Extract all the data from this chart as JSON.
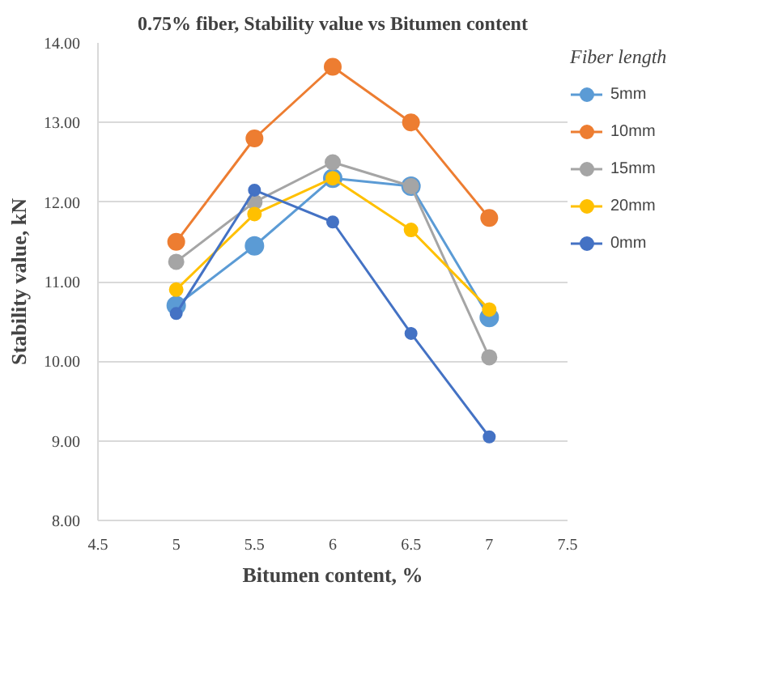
{
  "chart_data": {
    "type": "line",
    "title": "0.75% fiber, Stability value vs Bitumen content",
    "xlabel": "Bitumen content, %",
    "ylabel": "Stability value, kN",
    "legend_title": "Fiber length",
    "x": [
      5,
      5.5,
      6,
      6.5,
      7
    ],
    "series": [
      {
        "name": "5mm",
        "color": "#5b9bd5",
        "values": [
          10.7,
          11.45,
          12.3,
          12.2,
          10.55
        ]
      },
      {
        "name": "10mm",
        "color": "#ed7d31",
        "values": [
          11.5,
          12.8,
          13.7,
          13.0,
          11.8
        ]
      },
      {
        "name": "15mm",
        "color": "#a5a5a5",
        "values": [
          11.25,
          12.0,
          12.5,
          12.2,
          10.05
        ]
      },
      {
        "name": "20mm",
        "color": "#ffc000",
        "values": [
          10.9,
          11.85,
          12.3,
          11.65,
          10.65
        ]
      },
      {
        "name": "0mm",
        "color": "#4472c4",
        "values": [
          10.6,
          12.15,
          11.75,
          10.35,
          9.05
        ]
      }
    ],
    "xlim": [
      4.5,
      7.5
    ],
    "xticks": [
      4.5,
      5,
      5.5,
      6,
      6.5,
      7,
      7.5
    ],
    "ylim": [
      8,
      14
    ],
    "yticks": [
      {
        "value": 8,
        "label": "8.00"
      },
      {
        "value": 9,
        "label": "9.00"
      },
      {
        "value": 10,
        "label": "10.00"
      },
      {
        "value": 11,
        "label": "11.00"
      },
      {
        "value": 12,
        "label": "12.00"
      },
      {
        "value": 13,
        "label": "13.00"
      },
      {
        "value": 14,
        "label": "14.00"
      }
    ],
    "grid": "y",
    "legend": "right",
    "marker": "circle",
    "line_style": "solid"
  }
}
